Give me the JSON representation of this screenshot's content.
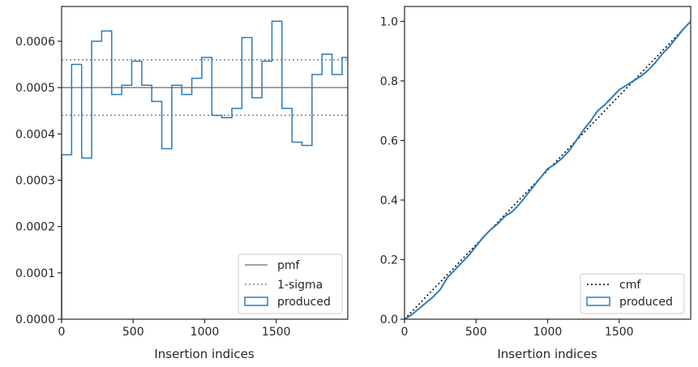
{
  "chart_data": [
    {
      "type": "line",
      "subtype": "step-histogram",
      "xlabel": "Insertion indices",
      "ylabel": "",
      "xlim": [
        0,
        2000
      ],
      "ylim": [
        0,
        0.000675
      ],
      "xticks": [
        "0",
        "500",
        "1000",
        "1500"
      ],
      "yticks": [
        "0.0000",
        "0.0001",
        "0.0002",
        "0.0003",
        "0.0004",
        "0.0005",
        "0.0006"
      ],
      "legend_position": "lower right",
      "legend": [
        "pmf",
        "1-sigma",
        "produced"
      ],
      "pmf": 0.0005,
      "sigma_band": [
        0.00044,
        0.00056
      ],
      "series": [
        {
          "name": "produced",
          "bin_width": 70,
          "bin_edges_start": 0,
          "values": [
            0.000355,
            0.00055,
            0.000348,
            0.0006,
            0.000622,
            0.000485,
            0.000505,
            0.000557,
            0.000505,
            0.00047,
            0.000368,
            0.000505,
            0.000485,
            0.00052,
            0.000565,
            0.00044,
            0.000435,
            0.000455,
            0.000608,
            0.000478,
            0.000557,
            0.000643,
            0.000455,
            0.000382,
            0.000375,
            0.000528,
            0.000572,
            0.000528,
            0.000565
          ]
        }
      ]
    },
    {
      "type": "line",
      "subtype": "cumulative-histogram",
      "xlabel": "Insertion indices",
      "ylabel": "",
      "xlim": [
        0,
        2000
      ],
      "ylim": [
        0,
        1.05
      ],
      "xticks": [
        "0",
        "500",
        "1000",
        "1500"
      ],
      "yticks": [
        "0.0",
        "0.2",
        "0.4",
        "0.6",
        "0.8",
        "1.0"
      ],
      "legend_position": "lower right",
      "legend": [
        "cmf",
        "produced"
      ],
      "series": [
        {
          "name": "cmf",
          "x": [
            0,
            2000
          ],
          "y": [
            0,
            1.0
          ]
        },
        {
          "name": "produced",
          "x": [
            0,
            50,
            100,
            150,
            200,
            250,
            300,
            350,
            400,
            450,
            500,
            550,
            600,
            650,
            700,
            750,
            800,
            850,
            900,
            950,
            1000,
            1050,
            1100,
            1150,
            1200,
            1250,
            1300,
            1350,
            1400,
            1450,
            1500,
            1550,
            1600,
            1650,
            1700,
            1750,
            1800,
            1850,
            1900,
            1950,
            2000
          ],
          "y": [
            0,
            0.015,
            0.035,
            0.055,
            0.075,
            0.1,
            0.14,
            0.165,
            0.19,
            0.215,
            0.245,
            0.275,
            0.3,
            0.32,
            0.345,
            0.36,
            0.385,
            0.415,
            0.445,
            0.475,
            0.505,
            0.52,
            0.54,
            0.565,
            0.6,
            0.635,
            0.665,
            0.7,
            0.72,
            0.745,
            0.77,
            0.785,
            0.8,
            0.815,
            0.835,
            0.86,
            0.89,
            0.915,
            0.945,
            0.975,
            1.0
          ]
        }
      ]
    }
  ]
}
